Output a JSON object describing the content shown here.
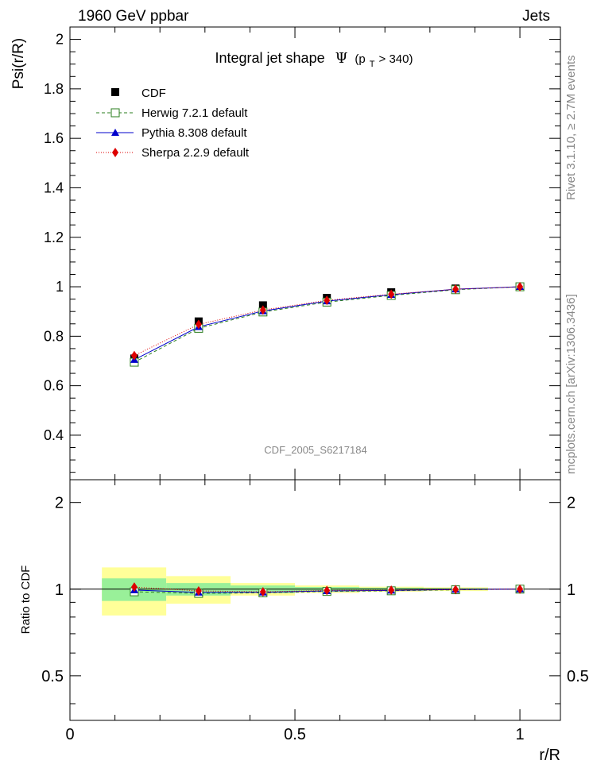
{
  "header": {
    "left": "1960 GeV ppbar",
    "right": "Jets"
  },
  "side_labels": {
    "rivet": "Rivet 3.1.10, ≥ 2.7M events",
    "mcplots": "mcplots.cern.ch [arXiv:1306.3436]"
  },
  "chart_data": [
    {
      "type": "line",
      "title_main": "Integral jet shape",
      "title_symbol": "Ψ",
      "title_cut_open": "(p",
      "title_cut_sub": "T",
      "title_cut_close": " > 340)",
      "ylabel": "Psi(r/R)",
      "ylim": [
        0.22,
        2.05
      ],
      "yticks": [
        "0.4",
        "0.6",
        "0.8",
        "1",
        "1.2",
        "1.4",
        "1.6",
        "1.8",
        "2"
      ],
      "watermark": "CDF_2005_S6217184",
      "x": [
        0.143,
        0.286,
        0.429,
        0.571,
        0.714,
        0.857,
        1.0
      ],
      "series": [
        {
          "name": "CDF",
          "color": "#000000",
          "marker": "square",
          "values": [
            0.71,
            0.86,
            0.925,
            0.955,
            0.978,
            0.993,
            1.0
          ]
        },
        {
          "name": "Herwig 7.2.1 default",
          "color": "#2a7d1d",
          "marker": "open-square",
          "dash": "4,3",
          "values": [
            0.695,
            0.832,
            0.898,
            0.938,
            0.965,
            0.988,
            1.0
          ]
        },
        {
          "name": "Pythia 8.308 default",
          "color": "#0000cc",
          "marker": "triangle",
          "dash": "",
          "values": [
            0.705,
            0.838,
            0.902,
            0.942,
            0.968,
            0.99,
            1.0
          ]
        },
        {
          "name": "Sherpa 2.2.9 default",
          "color": "#dd0000",
          "marker": "diamond",
          "dash": "1,2",
          "values": [
            0.722,
            0.848,
            0.906,
            0.945,
            0.97,
            0.99,
            1.0
          ]
        }
      ]
    },
    {
      "type": "line",
      "ylabel": "Ratio to CDF",
      "xlabel": "r/R",
      "ylim": [
        0.35,
        2.4
      ],
      "yticks": [
        "0.5",
        "1",
        "2"
      ],
      "xlim": [
        0,
        1.09
      ],
      "xticks": [
        "0",
        "0.5",
        "1"
      ],
      "bands": {
        "x_edges": [
          0.071,
          0.214,
          0.357,
          0.5,
          0.643,
          0.786,
          0.929
        ],
        "green_half": [
          0.09,
          0.05,
          0.03,
          0.018,
          0.012,
          0.008
        ],
        "yellow_half": [
          0.19,
          0.11,
          0.05,
          0.03,
          0.02,
          0.015
        ],
        "green_color": "#99f099",
        "yellow_color": "#ffff99"
      },
      "x": [
        0.143,
        0.286,
        0.429,
        0.571,
        0.714,
        0.857,
        1.0
      ],
      "series": [
        {
          "name": "Herwig 7.2.1 default",
          "color": "#2a7d1d",
          "marker": "open-square",
          "dash": "4,3",
          "values": [
            0.979,
            0.967,
            0.971,
            0.982,
            0.987,
            0.995,
            1.0
          ]
        },
        {
          "name": "Pythia 8.308 default",
          "color": "#0000cc",
          "marker": "triangle",
          "dash": "",
          "values": [
            0.993,
            0.974,
            0.975,
            0.986,
            0.99,
            0.997,
            1.0
          ]
        },
        {
          "name": "Sherpa 2.2.9 default",
          "color": "#dd0000",
          "marker": "diamond",
          "dash": "1,2",
          "values": [
            1.017,
            0.986,
            0.979,
            0.99,
            0.992,
            0.997,
            1.0
          ]
        }
      ]
    }
  ]
}
